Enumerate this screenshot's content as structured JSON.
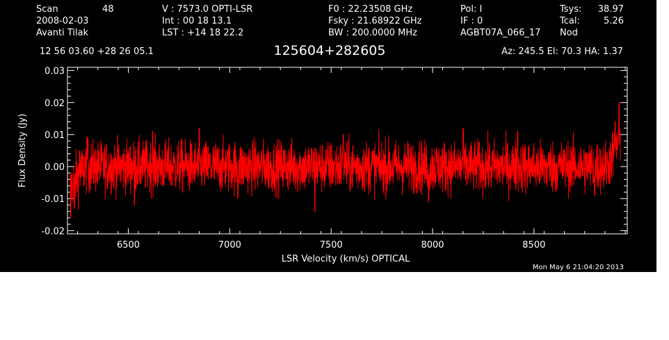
{
  "header": {
    "col1": [
      "Scan",
      "2008-02-03",
      "Avanti Tilak"
    ],
    "scan_number": "48",
    "col2": [
      "V   :    7573.0 OPTI-LSR",
      "Int  :   00 18 13.1",
      "LST : +14 18 22.2"
    ],
    "col3": [
      "F0   :  22.23508 GHz",
      "Fsky :  21.68922 GHz",
      "BW   : 200.0000 MHz"
    ],
    "col4": [
      "Pol:    I",
      "IF :     0",
      "AGBT07A_066_17"
    ],
    "col5": [
      "Tsys:",
      "Tcal:",
      "Nod"
    ],
    "col5_values": [
      "38.97",
      "5.26"
    ],
    "coords": "12 56 03.60  +28 26 05.1",
    "source": "125604+282605",
    "pointing": "Az: 245.5   El:  70.3   HA:  1.37",
    "timestamp": "Mon May  6 21:04:20 2013"
  },
  "chart_data": {
    "type": "line",
    "title": "125604+282605",
    "xlabel": "LSR Velocity (km/s) OPTICAL",
    "ylabel": "Flux Density (Jy)",
    "xlim": [
      6200,
      8960
    ],
    "ylim": [
      -0.021,
      0.031
    ],
    "x_ticks": [
      6500,
      7000,
      7500,
      8000,
      8500
    ],
    "x_tick_labels": [
      "6500",
      "7000",
      "7500",
      "8000",
      "8500"
    ],
    "y_ticks": [
      -0.02,
      -0.01,
      0.0,
      0.01,
      0.02,
      0.03
    ],
    "y_tick_labels": [
      "-0.02",
      "-0.01",
      "0.00",
      "0.01",
      "0.02",
      "0.03"
    ],
    "grid": false,
    "series": [
      {
        "color": "#ff0000",
        "x_start": 6212,
        "x_end": 8926,
        "noise_rms_jy": 0.004,
        "spikes": [
          {
            "x": 6215,
            "y": -0.016
          },
          {
            "x": 6235,
            "y": -0.013
          },
          {
            "x": 6260,
            "y": 0.005
          },
          {
            "x": 6300,
            "y": 0.009
          },
          {
            "x": 6530,
            "y": -0.012
          },
          {
            "x": 6620,
            "y": 0.011
          },
          {
            "x": 6850,
            "y": 0.012
          },
          {
            "x": 7040,
            "y": -0.01
          },
          {
            "x": 7420,
            "y": -0.014
          },
          {
            "x": 7560,
            "y": 0.01
          },
          {
            "x": 7980,
            "y": -0.011
          },
          {
            "x": 8150,
            "y": 0.012
          },
          {
            "x": 8420,
            "y": 0.011
          },
          {
            "x": 8800,
            "y": -0.009
          },
          {
            "x": 8900,
            "y": 0.014
          },
          {
            "x": 8920,
            "y": 0.02
          }
        ]
      }
    ]
  }
}
